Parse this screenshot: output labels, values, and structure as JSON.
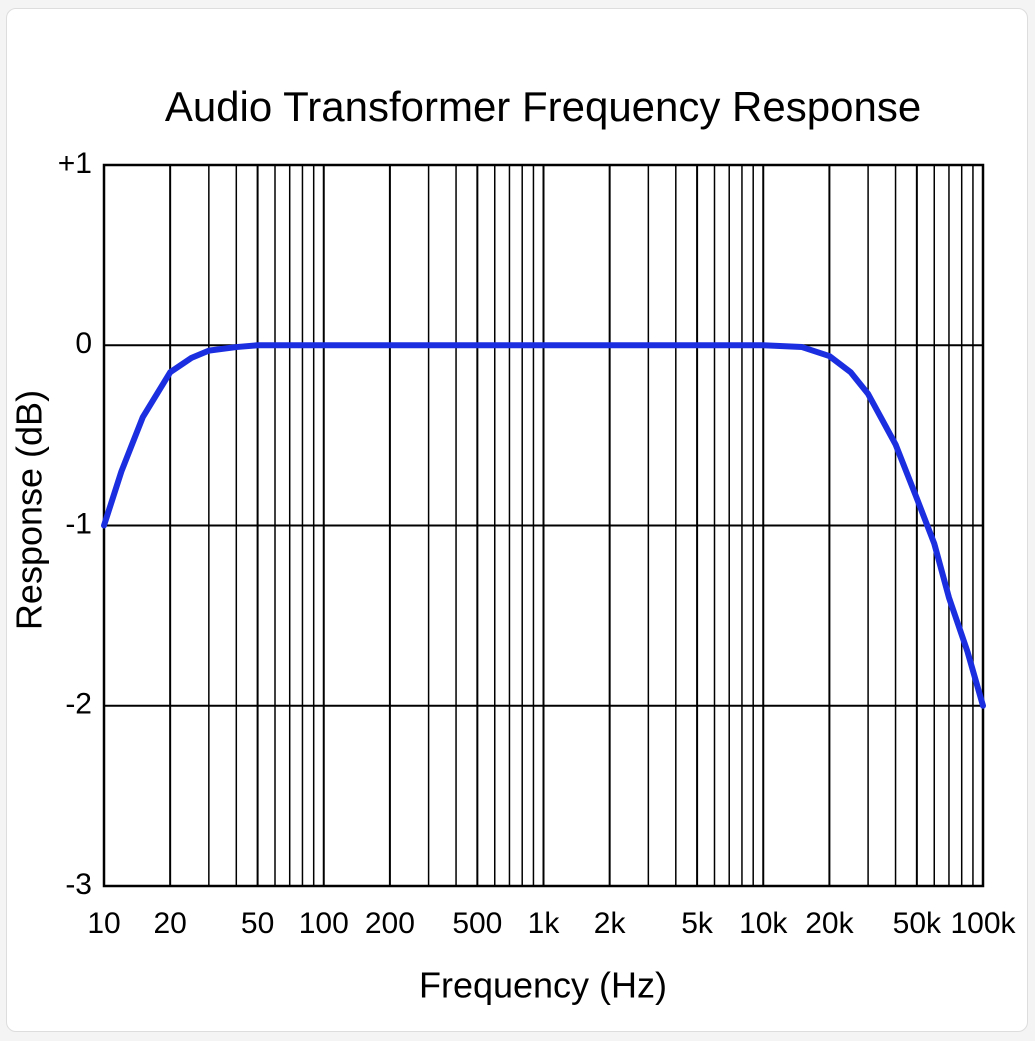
{
  "chart_data": {
    "type": "line",
    "title": "Audio Transformer Frequency Response",
    "x_label": "Frequency (Hz)",
    "y_label": "Response (dB)",
    "x_log": true,
    "grid": true,
    "xlim": [
      10,
      100000
    ],
    "ylim": [
      -3,
      1
    ],
    "xticks": [
      10,
      20,
      50,
      100,
      200,
      500,
      {
        "value": 1000,
        "label": "1k"
      },
      {
        "value": 2000,
        "label": "2k"
      },
      {
        "value": 5000,
        "label": "5k"
      },
      {
        "value": 10000,
        "label": "10k"
      },
      {
        "value": 20000,
        "label": "20k"
      },
      {
        "value": 50000,
        "label": "50k"
      },
      {
        "value": 100000,
        "label": "100k"
      }
    ],
    "x_minor_grid": [
      30,
      40,
      60,
      70,
      80,
      90,
      300,
      400,
      600,
      700,
      800,
      900,
      3000,
      4000,
      6000,
      7000,
      8000,
      9000,
      30000,
      40000,
      60000,
      70000,
      80000,
      90000
    ],
    "yticks": [
      {
        "value": 1,
        "label": "+1"
      },
      0,
      -1,
      -2,
      -3
    ],
    "series": [
      {
        "color": "#1c2fe0",
        "x": [
          10,
          12,
          15,
          20,
          25,
          30,
          40,
          50,
          100,
          1000,
          10000,
          15000,
          20000,
          25000,
          30000,
          40000,
          50000,
          60000,
          70000,
          85000,
          100000
        ],
        "values": [
          -1,
          -0.7,
          -0.4,
          -0.15,
          -0.07,
          -0.03,
          -0.01,
          0,
          0,
          0,
          0,
          -0.01,
          -0.06,
          -0.15,
          -0.27,
          -0.55,
          -0.85,
          -1.1,
          -1.4,
          -1.7,
          -2
        ]
      }
    ]
  }
}
